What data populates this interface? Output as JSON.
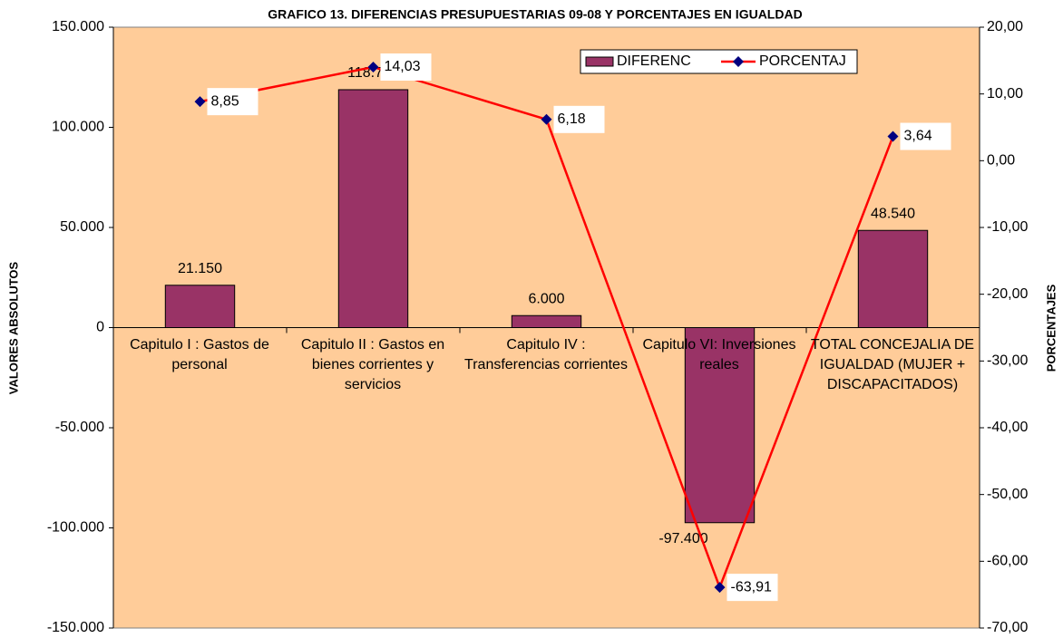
{
  "chart_data": {
    "type": "bar",
    "title": "GRAFICO 13. DIFERENCIAS PRESUPUESTARIAS 09-08 Y PORCENTAJES EN IGUALDAD",
    "y_label": "VALORES ABSOLUTOS",
    "y2_label": "PORCENTAJES",
    "categories": [
      "Capitulo I : Gastos de personal",
      "Capitulo II : Gastos en bienes corrientes y servicios",
      "Capitulo IV : Transferencias corrientes",
      "Capitulo VI: Inversiones reales",
      "TOTAL CONCEJALIA DE  IGUALDAD (MUJER + DISCAPACITADOS)"
    ],
    "series": [
      {
        "name": "DIFERENC",
        "type": "bar",
        "color": "#993366",
        "values": [
          21150,
          118790,
          6000,
          -97400,
          48540
        ],
        "value_labels": [
          "21.150",
          "118.790",
          "6.000",
          "-97.400",
          "48.540"
        ]
      },
      {
        "name": "PORCENTAJ",
        "type": "line",
        "axis": "y2",
        "color": "#FF0000",
        "marker_color": "#000080",
        "values": [
          8.85,
          14.03,
          6.18,
          -63.91,
          3.64
        ],
        "value_labels": [
          "8,85",
          "14,03",
          "6,18",
          "-63,91",
          "3,64"
        ]
      }
    ],
    "ylim": [
      -150000,
      150000
    ],
    "yticks": [
      {
        "value": -150000,
        "label": "-150.000"
      },
      {
        "value": -100000,
        "label": "-100.000"
      },
      {
        "value": -50000,
        "label": "-50.000"
      },
      0,
      {
        "value": 50000,
        "label": "50.000"
      },
      {
        "value": 100000,
        "label": "100.000"
      },
      {
        "value": 150000,
        "label": "150.000"
      }
    ],
    "y2lim": [
      -70,
      20
    ],
    "y2ticks": [
      {
        "value": -70,
        "label": "-70,00"
      },
      {
        "value": -60,
        "label": "-60,00"
      },
      {
        "value": -50,
        "label": "-50,00"
      },
      {
        "value": -40,
        "label": "-40,00"
      },
      {
        "value": -30,
        "label": "-30,00"
      },
      {
        "value": -20,
        "label": "-20,00"
      },
      {
        "value": -10,
        "label": "-10,00"
      },
      {
        "value": 0,
        "label": "0,00"
      },
      {
        "value": 10,
        "label": "10,00"
      },
      {
        "value": 20,
        "label": "20,00"
      }
    ],
    "background": "#FFCC99",
    "legend": "top-right"
  }
}
